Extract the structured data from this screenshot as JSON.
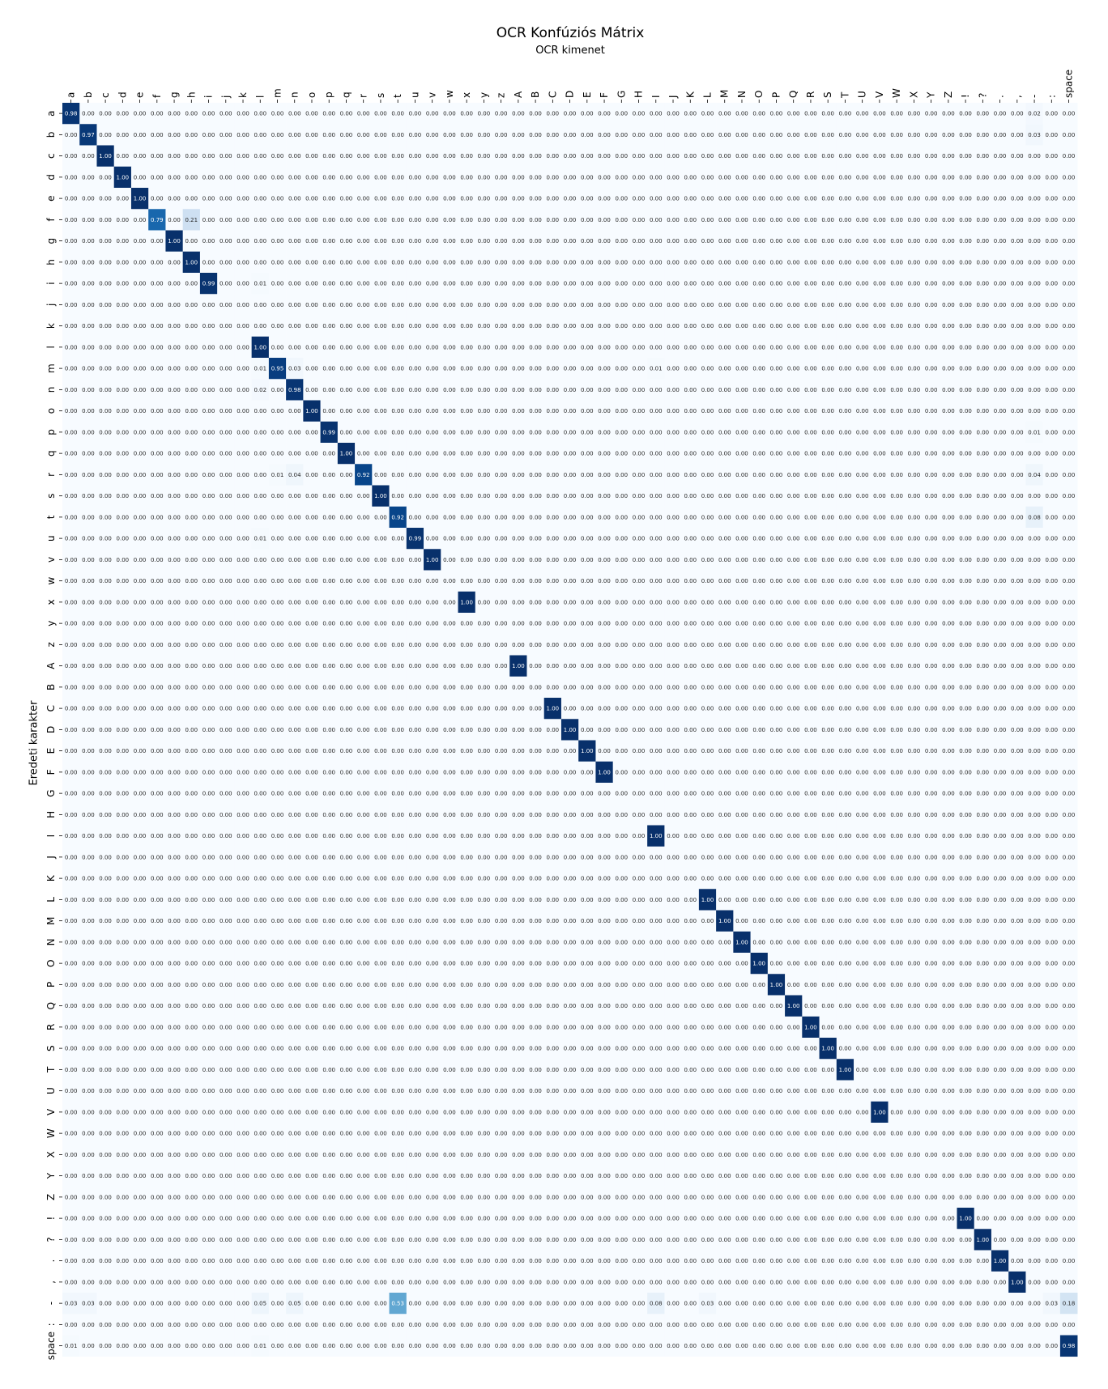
{
  "chart_data": {
    "type": "heatmap",
    "title": "OCR Konfúziós Mátrix",
    "xlabel": "OCR kimenet",
    "ylabel": "Eredeti karakter",
    "x_labels": [
      "a",
      "b",
      "c",
      "d",
      "e",
      "f",
      "g",
      "h",
      "i",
      "j",
      "k",
      "l",
      "m",
      "n",
      "o",
      "p",
      "q",
      "r",
      "s",
      "t",
      "u",
      "v",
      "w",
      "x",
      "y",
      "z",
      "A",
      "B",
      "C",
      "D",
      "E",
      "F",
      "G",
      "H",
      "I",
      "J",
      "K",
      "L",
      "M",
      "N",
      "O",
      "P",
      "Q",
      "R",
      "S",
      "T",
      "U",
      "V",
      "W",
      "X",
      "Y",
      "Z",
      "!",
      "?",
      ".",
      ",",
      "-",
      ":",
      "space"
    ],
    "y_labels": [
      "a",
      "b",
      "c",
      "d",
      "e",
      "f",
      "g",
      "h",
      "i",
      "j",
      "k",
      "l",
      "m",
      "n",
      "o",
      "p",
      "q",
      "r",
      "s",
      "t",
      "u",
      "v",
      "w",
      "x",
      "y",
      "z",
      "A",
      "B",
      "C",
      "D",
      "E",
      "F",
      "G",
      "H",
      "I",
      "J",
      "K",
      "L",
      "M",
      "N",
      "O",
      "P",
      "Q",
      "R",
      "S",
      "T",
      "U",
      "V",
      "W",
      "X",
      "Y",
      "Z",
      "!",
      "?",
      ".",
      ",",
      "-",
      ":",
      "space"
    ],
    "value_range": [
      0,
      1
    ],
    "colormap": "Blues",
    "cell_text_format": "0.00",
    "default_value": 0.0,
    "nonzero_cells": [
      {
        "row": "a",
        "col": "a",
        "value": 0.98
      },
      {
        "row": "a",
        "col": "-",
        "value": 0.02
      },
      {
        "row": "b",
        "col": "b",
        "value": 0.97
      },
      {
        "row": "b",
        "col": "-",
        "value": 0.03
      },
      {
        "row": "c",
        "col": "c",
        "value": 1.0
      },
      {
        "row": "d",
        "col": "d",
        "value": 1.0
      },
      {
        "row": "e",
        "col": "e",
        "value": 1.0
      },
      {
        "row": "f",
        "col": "f",
        "value": 0.79
      },
      {
        "row": "f",
        "col": "h",
        "value": 0.21
      },
      {
        "row": "g",
        "col": "g",
        "value": 1.0
      },
      {
        "row": "h",
        "col": "h",
        "value": 1.0
      },
      {
        "row": "i",
        "col": "i",
        "value": 0.99
      },
      {
        "row": "i",
        "col": "l",
        "value": 0.01
      },
      {
        "row": "l",
        "col": "l",
        "value": 1.0
      },
      {
        "row": "m",
        "col": "l",
        "value": 0.01
      },
      {
        "row": "m",
        "col": "m",
        "value": 0.95
      },
      {
        "row": "m",
        "col": "n",
        "value": 0.03
      },
      {
        "row": "m",
        "col": "I",
        "value": 0.01
      },
      {
        "row": "n",
        "col": "l",
        "value": 0.02
      },
      {
        "row": "n",
        "col": "n",
        "value": 0.98
      },
      {
        "row": "o",
        "col": "o",
        "value": 1.0
      },
      {
        "row": "p",
        "col": "p",
        "value": 0.99
      },
      {
        "row": "p",
        "col": "-",
        "value": 0.01
      },
      {
        "row": "q",
        "col": "q",
        "value": 1.0
      },
      {
        "row": "r",
        "col": "m",
        "value": 0.01
      },
      {
        "row": "r",
        "col": "n",
        "value": 0.04
      },
      {
        "row": "r",
        "col": "r",
        "value": 0.92
      },
      {
        "row": "r",
        "col": "-",
        "value": 0.04
      },
      {
        "row": "s",
        "col": "s",
        "value": 1.0
      },
      {
        "row": "t",
        "col": "t",
        "value": 0.92
      },
      {
        "row": "t",
        "col": "-",
        "value": 0.08
      },
      {
        "row": "u",
        "col": "l",
        "value": 0.01
      },
      {
        "row": "u",
        "col": "u",
        "value": 0.99
      },
      {
        "row": "v",
        "col": "v",
        "value": 1.0
      },
      {
        "row": "x",
        "col": "x",
        "value": 1.0
      },
      {
        "row": "A",
        "col": "A",
        "value": 1.0
      },
      {
        "row": "C",
        "col": "C",
        "value": 1.0
      },
      {
        "row": "D",
        "col": "D",
        "value": 1.0
      },
      {
        "row": "E",
        "col": "E",
        "value": 1.0
      },
      {
        "row": "F",
        "col": "F",
        "value": 1.0
      },
      {
        "row": "I",
        "col": "I",
        "value": 1.0
      },
      {
        "row": "L",
        "col": "L",
        "value": 1.0
      },
      {
        "row": "M",
        "col": "M",
        "value": 1.0
      },
      {
        "row": "N",
        "col": "N",
        "value": 1.0
      },
      {
        "row": "O",
        "col": "O",
        "value": 1.0
      },
      {
        "row": "P",
        "col": "P",
        "value": 1.0
      },
      {
        "row": "Q",
        "col": "Q",
        "value": 1.0
      },
      {
        "row": "R",
        "col": "R",
        "value": 1.0
      },
      {
        "row": "S",
        "col": "S",
        "value": 1.0
      },
      {
        "row": "T",
        "col": "T",
        "value": 1.0
      },
      {
        "row": "V",
        "col": "V",
        "value": 1.0
      },
      {
        "row": "!",
        "col": "!",
        "value": 1.0
      },
      {
        "row": "?",
        "col": "?",
        "value": 1.0
      },
      {
        "row": ".",
        "col": ".",
        "value": 1.0
      },
      {
        "row": ",",
        "col": ",",
        "value": 1.0
      },
      {
        "row": "-",
        "col": "a",
        "value": 0.03
      },
      {
        "row": "-",
        "col": "b",
        "value": 0.03
      },
      {
        "row": "-",
        "col": "l",
        "value": 0.05
      },
      {
        "row": "-",
        "col": "n",
        "value": 0.05
      },
      {
        "row": "-",
        "col": "t",
        "value": 0.53
      },
      {
        "row": "-",
        "col": "I",
        "value": 0.08
      },
      {
        "row": "-",
        "col": "L",
        "value": 0.03
      },
      {
        "row": "-",
        "col": ":",
        "value": 0.03
      },
      {
        "row": "-",
        "col": "space",
        "value": 0.18
      },
      {
        "row": "space",
        "col": "a",
        "value": 0.01
      },
      {
        "row": "space",
        "col": "l",
        "value": 0.01
      },
      {
        "row": "space",
        "col": "space",
        "value": 0.98
      }
    ]
  }
}
